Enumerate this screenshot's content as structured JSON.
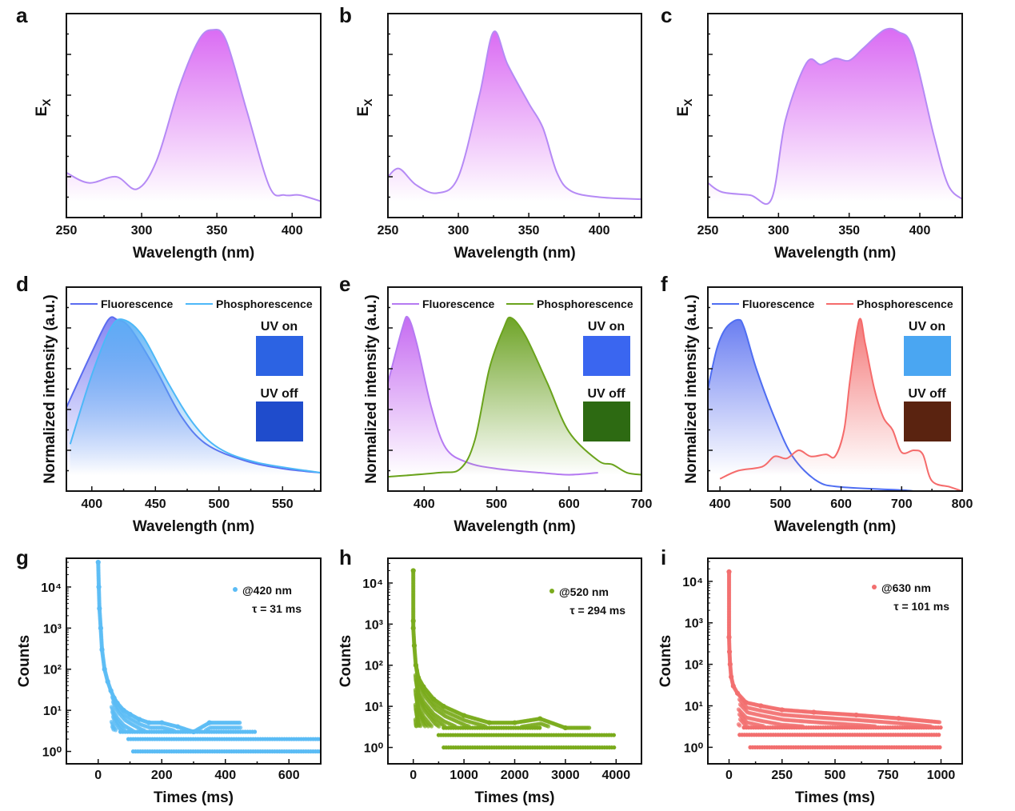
{
  "chart_data": [
    {
      "letter": "a",
      "type": "area",
      "xlabel": "Wavelength (nm)",
      "ylabel": {
        "main": "E",
        "sub": "X"
      },
      "xlim": [
        250,
        419
      ],
      "ylim": [
        0,
        1
      ],
      "xticks": [
        250,
        300,
        350,
        400
      ],
      "series": [
        {
          "color": "#b58af5",
          "fill": "#d65cf2",
          "points": [
            [
              250,
              0.22
            ],
            [
              265,
              0.17
            ],
            [
              283,
              0.2
            ],
            [
              297,
              0.14
            ],
            [
              310,
              0.28
            ],
            [
              325,
              0.64
            ],
            [
              338,
              0.87
            ],
            [
              347,
              0.92
            ],
            [
              356,
              0.87
            ],
            [
              370,
              0.52
            ],
            [
              385,
              0.15
            ],
            [
              395,
              0.11
            ],
            [
              405,
              0.11
            ],
            [
              419,
              0.08
            ]
          ]
        }
      ]
    },
    {
      "letter": "b",
      "type": "area",
      "xlabel": "Wavelength (nm)",
      "ylabel": {
        "main": "E",
        "sub": "X"
      },
      "xlim": [
        250,
        430
      ],
      "ylim": [
        0,
        1
      ],
      "xticks": [
        250,
        300,
        350,
        400
      ],
      "series": [
        {
          "color": "#b58af5",
          "fill": "#d65cf2",
          "points": [
            [
              250,
              0.2
            ],
            [
              258,
              0.24
            ],
            [
              270,
              0.16
            ],
            [
              285,
              0.12
            ],
            [
              300,
              0.2
            ],
            [
              315,
              0.6
            ],
            [
              325,
              0.91
            ],
            [
              335,
              0.75
            ],
            [
              350,
              0.56
            ],
            [
              360,
              0.44
            ],
            [
              370,
              0.22
            ],
            [
              380,
              0.13
            ],
            [
              400,
              0.1
            ],
            [
              430,
              0.09
            ]
          ]
        }
      ]
    },
    {
      "letter": "c",
      "type": "area",
      "xlabel": "Wavelength (nm)",
      "ylabel": {
        "main": "E",
        "sub": "X"
      },
      "xlim": [
        250,
        430
      ],
      "ylim": [
        0,
        1
      ],
      "xticks": [
        250,
        300,
        350,
        400
      ],
      "series": [
        {
          "color": "#b58af5",
          "fill": "#d65cf2",
          "points": [
            [
              250,
              0.17
            ],
            [
              260,
              0.125
            ],
            [
              280,
              0.11
            ],
            [
              295,
              0.09
            ],
            [
              305,
              0.48
            ],
            [
              320,
              0.76
            ],
            [
              330,
              0.75
            ],
            [
              340,
              0.78
            ],
            [
              350,
              0.77
            ],
            [
              360,
              0.83
            ],
            [
              375,
              0.92
            ],
            [
              385,
              0.91
            ],
            [
              395,
              0.83
            ],
            [
              410,
              0.4
            ],
            [
              420,
              0.16
            ],
            [
              430,
              0.09
            ]
          ]
        }
      ]
    },
    {
      "letter": "d",
      "type": "area",
      "xlabel": "Wavelength (nm)",
      "ylabel": "Normalized intensity (a.u.)",
      "xlim": [
        380,
        580
      ],
      "ylim": [
        0,
        1
      ],
      "xticks": [
        400,
        450,
        500,
        550
      ],
      "legend": [
        "Fluorescence",
        "Phosphorescence"
      ],
      "insets": [
        {
          "label": "UV on",
          "color": "#2c63e3"
        },
        {
          "label": "UV off",
          "color": "#1f4ccc"
        }
      ],
      "series": [
        {
          "name": "Fluorescence",
          "color": "#5b6cf0",
          "fill": "#7a7cf2",
          "points": [
            [
              380,
              0.41
            ],
            [
              400,
              0.68
            ],
            [
              413,
              0.84
            ],
            [
              420,
              0.84
            ],
            [
              430,
              0.8
            ],
            [
              450,
              0.6
            ],
            [
              470,
              0.37
            ],
            [
              490,
              0.23
            ],
            [
              520,
              0.15
            ],
            [
              550,
              0.11
            ],
            [
              580,
              0.09
            ]
          ]
        },
        {
          "name": "Phosphorescence",
          "color": "#4db8f8",
          "fill": "#5ab0f5",
          "points": [
            [
              383,
              0.23
            ],
            [
              400,
              0.57
            ],
            [
              415,
              0.8
            ],
            [
              425,
              0.84
            ],
            [
              440,
              0.76
            ],
            [
              460,
              0.53
            ],
            [
              480,
              0.33
            ],
            [
              500,
              0.21
            ],
            [
              530,
              0.14
            ],
            [
              580,
              0.09
            ]
          ]
        }
      ]
    },
    {
      "letter": "e",
      "type": "area",
      "xlabel": "Wavelength (nm)",
      "ylabel": "Normalized intensity (a.u.)",
      "xlim": [
        350,
        700
      ],
      "ylim": [
        0,
        1
      ],
      "xticks": [
        400,
        500,
        600,
        700
      ],
      "legend": [
        "Fluorescence",
        "Phosphorescence"
      ],
      "insets": [
        {
          "label": "UV on",
          "color": "#3a66f0"
        },
        {
          "label": "UV off",
          "color": "#2d6a12"
        }
      ],
      "series": [
        {
          "name": "Fluorescence",
          "color": "#b57af2",
          "fill": "#c05cf0",
          "points": [
            [
              350,
              0.53
            ],
            [
              370,
              0.8
            ],
            [
              378,
              0.85
            ],
            [
              390,
              0.72
            ],
            [
              410,
              0.41
            ],
            [
              430,
              0.21
            ],
            [
              460,
              0.14
            ],
            [
              500,
              0.11
            ],
            [
              560,
              0.09
            ],
            [
              600,
              0.08
            ],
            [
              640,
              0.09
            ]
          ]
        },
        {
          "name": "Phosphorescence",
          "color": "#6aa31c",
          "fill": "#5f9a10",
          "points": [
            [
              350,
              0.07
            ],
            [
              420,
              0.09
            ],
            [
              450,
              0.11
            ],
            [
              470,
              0.25
            ],
            [
              490,
              0.6
            ],
            [
              510,
              0.8
            ],
            [
              520,
              0.85
            ],
            [
              540,
              0.76
            ],
            [
              570,
              0.53
            ],
            [
              600,
              0.29
            ],
            [
              640,
              0.15
            ],
            [
              660,
              0.13
            ],
            [
              680,
              0.09
            ],
            [
              700,
              0.08
            ]
          ]
        }
      ]
    },
    {
      "letter": "f",
      "type": "area",
      "xlabel": "Wavelength (nm)",
      "ylabel": "Normalized intensity (a.u.)",
      "xlim": [
        380,
        800
      ],
      "ylim": [
        0,
        1
      ],
      "xticks": [
        400,
        500,
        600,
        700,
        800
      ],
      "legend": [
        "Fluorescence",
        "Phosphorescence"
      ],
      "insets": [
        {
          "label": "UV on",
          "color": "#4aa6f2"
        },
        {
          "label": "UV off",
          "color": "#5a2310"
        }
      ],
      "series": [
        {
          "name": "Fluorescence",
          "color": "#4f6ef2",
          "fill": "#5a70f0",
          "points": [
            [
              380,
              0.5
            ],
            [
              395,
              0.7
            ],
            [
              410,
              0.8
            ],
            [
              430,
              0.84
            ],
            [
              440,
              0.8
            ],
            [
              460,
              0.6
            ],
            [
              490,
              0.36
            ],
            [
              520,
              0.17
            ],
            [
              560,
              0.05
            ],
            [
              600,
              0.02
            ],
            [
              700,
              0.005
            ],
            [
              720,
              0
            ]
          ]
        },
        {
          "name": "Phosphorescence",
          "color": "#f56b6b",
          "fill": "#f26a6a",
          "points": [
            [
              400,
              0.06
            ],
            [
              430,
              0.1
            ],
            [
              470,
              0.12
            ],
            [
              490,
              0.17
            ],
            [
              510,
              0.16
            ],
            [
              530,
              0.2
            ],
            [
              550,
              0.17
            ],
            [
              575,
              0.18
            ],
            [
              590,
              0.17
            ],
            [
              605,
              0.3
            ],
            [
              615,
              0.55
            ],
            [
              630,
              0.84
            ],
            [
              640,
              0.72
            ],
            [
              655,
              0.5
            ],
            [
              670,
              0.36
            ],
            [
              685,
              0.3
            ],
            [
              700,
              0.19
            ],
            [
              720,
              0.2
            ],
            [
              735,
              0.18
            ],
            [
              750,
              0.05
            ],
            [
              780,
              0.02
            ],
            [
              800,
              0
            ]
          ]
        }
      ]
    },
    {
      "letter": "g",
      "type": "scatter",
      "xlabel": "Times (ms)",
      "ylabel": "Counts",
      "xlim": [
        -100,
        700
      ],
      "ylim": [
        0.5,
        50000
      ],
      "yscale": "log",
      "xticks": [
        0,
        200,
        400,
        600
      ],
      "yticks": [
        1,
        10,
        100,
        1000,
        10000
      ],
      "ytick_labels": [
        "10⁰",
        "10¹",
        "10²",
        "10³",
        "10⁴"
      ],
      "legend": "@420 nm",
      "annotation": "τ = 31 ms",
      "color": "#5bbcf5",
      "decay": [
        [
          0,
          40000
        ],
        [
          2,
          10000
        ],
        [
          4,
          3000
        ],
        [
          8,
          1000
        ],
        [
          12,
          300
        ],
        [
          20,
          100
        ],
        [
          30,
          50
        ],
        [
          40,
          30
        ],
        [
          50,
          20
        ],
        [
          60,
          15
        ],
        [
          80,
          10
        ],
        [
          100,
          8
        ],
        [
          130,
          6
        ],
        [
          160,
          5
        ],
        [
          200,
          5
        ],
        [
          250,
          4
        ],
        [
          300,
          3
        ],
        [
          350,
          5
        ],
        [
          450,
          5
        ]
      ],
      "levels": [
        {
          "count": 3,
          "from": 70,
          "to": 500
        },
        {
          "count": 2,
          "from": 95,
          "to": 700
        },
        {
          "count": 1,
          "from": 110,
          "to": 700
        }
      ]
    },
    {
      "letter": "h",
      "type": "scatter",
      "xlabel": "Times (ms)",
      "ylabel": "Counts",
      "xlim": [
        -500,
        4500
      ],
      "ylim": [
        0.4,
        40000
      ],
      "yscale": "log",
      "xticks": [
        0,
        1000,
        2000,
        3000,
        4000
      ],
      "yticks": [
        1,
        10,
        100,
        1000,
        10000
      ],
      "ytick_labels": [
        "10⁰",
        "10¹",
        "10²",
        "10³",
        "10⁴"
      ],
      "legend": "@520 nm",
      "annotation": "τ = 294 ms",
      "color": "#7aab1c",
      "decay": [
        [
          0,
          20000
        ],
        [
          0,
          1200
        ],
        [
          0,
          800
        ],
        [
          20,
          300
        ],
        [
          50,
          100
        ],
        [
          100,
          50
        ],
        [
          200,
          30
        ],
        [
          400,
          15
        ],
        [
          600,
          10
        ],
        [
          1000,
          6
        ],
        [
          1500,
          4
        ],
        [
          2000,
          4
        ],
        [
          2500,
          5
        ],
        [
          3000,
          3
        ],
        [
          3500,
          3
        ]
      ],
      "levels": [
        {
          "count": 3,
          "from": 600,
          "to": 2500
        },
        {
          "count": 2,
          "from": 500,
          "to": 4000
        },
        {
          "count": 1,
          "from": 600,
          "to": 4000
        }
      ]
    },
    {
      "letter": "i",
      "type": "scatter",
      "xlabel": "Times (ms)",
      "ylabel": "Counts",
      "xlim": [
        -100,
        1100
      ],
      "ylim": [
        0.4,
        36000
      ],
      "yscale": "log",
      "xticks": [
        0,
        250,
        500,
        750,
        1000
      ],
      "yticks": [
        1,
        10,
        100,
        1000,
        10000
      ],
      "ytick_labels": [
        "10⁰",
        "10¹",
        "10²",
        "10³",
        "10⁴"
      ],
      "legend": "@630 nm",
      "annotation": "τ = 101 ms",
      "color": "#f26f6f",
      "decay": [
        [
          0,
          17000
        ],
        [
          0,
          450
        ],
        [
          2,
          200
        ],
        [
          5,
          100
        ],
        [
          10,
          50
        ],
        [
          20,
          30
        ],
        [
          40,
          20
        ],
        [
          80,
          12
        ],
        [
          150,
          10
        ],
        [
          250,
          8
        ],
        [
          400,
          7
        ],
        [
          600,
          6
        ],
        [
          800,
          5
        ],
        [
          1000,
          4
        ]
      ],
      "levels": [
        {
          "count": 3,
          "from": 70,
          "to": 1000
        },
        {
          "count": 2,
          "from": 50,
          "to": 1000
        },
        {
          "count": 1,
          "from": 100,
          "to": 1000
        }
      ]
    }
  ]
}
